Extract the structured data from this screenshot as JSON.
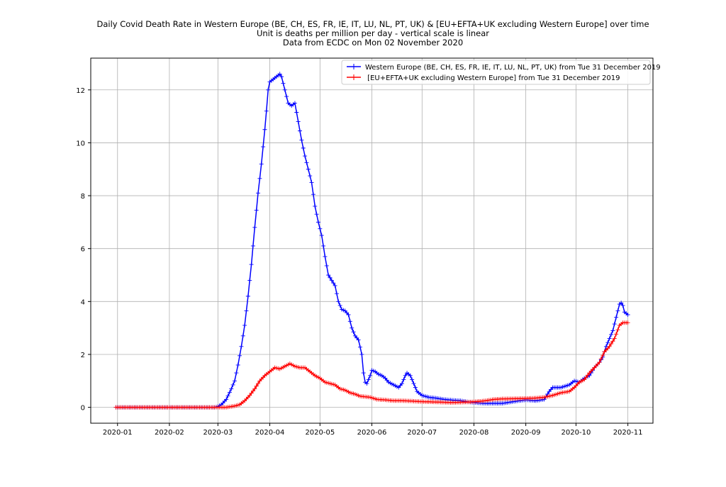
{
  "chart_data": {
    "type": "line",
    "title_lines": [
      "Daily Covid Death Rate in Western Europe (BE, CH, ES, FR, IE, IT, LU, NL, PT, UK) &  [EU+EFTA+UK excluding Western Europe] over time",
      "Unit is deaths per million per day - vertical scale is linear",
      "Data from ECDC on Mon 02 November 2020"
    ],
    "xlabel": "",
    "ylabel": "",
    "x_unit": "days since 2020-01-01",
    "xlim": [
      -16,
      320
    ],
    "ylim": [
      -0.6,
      13.2
    ],
    "grid": true,
    "legend_placement": "top-right",
    "xticks": [
      {
        "day": 0,
        "label": "2020-01"
      },
      {
        "day": 31,
        "label": "2020-02"
      },
      {
        "day": 60,
        "label": "2020-03"
      },
      {
        "day": 91,
        "label": "2020-04"
      },
      {
        "day": 121,
        "label": "2020-05"
      },
      {
        "day": 152,
        "label": "2020-06"
      },
      {
        "day": 182,
        "label": "2020-07"
      },
      {
        "day": 213,
        "label": "2020-08"
      },
      {
        "day": 244,
        "label": "2020-09"
      },
      {
        "day": 274,
        "label": "2020-10"
      },
      {
        "day": 305,
        "label": "2020-11"
      }
    ],
    "yticks": [
      0,
      2,
      4,
      6,
      8,
      10,
      12
    ],
    "series": [
      {
        "name": "Western Europe (BE, CH, ES, FR, IE, IT, LU, NL, PT, UK) from Tue 31 December 2019",
        "color": "#0000ff",
        "points": [
          [
            -1,
            0
          ],
          [
            58,
            0
          ],
          [
            60,
            0.03
          ],
          [
            62,
            0.1
          ],
          [
            65,
            0.3
          ],
          [
            68,
            0.7
          ],
          [
            70,
            1.0
          ],
          [
            72,
            1.6
          ],
          [
            74,
            2.3
          ],
          [
            76,
            3.1
          ],
          [
            78,
            4.2
          ],
          [
            80,
            5.4
          ],
          [
            82,
            6.8
          ],
          [
            84,
            8.1
          ],
          [
            86,
            9.2
          ],
          [
            88,
            10.5
          ],
          [
            89,
            11.2
          ],
          [
            90,
            12.0
          ],
          [
            91,
            12.3
          ],
          [
            93,
            12.4
          ],
          [
            95,
            12.5
          ],
          [
            97,
            12.6
          ],
          [
            98,
            12.5
          ],
          [
            100,
            12.0
          ],
          [
            102,
            11.5
          ],
          [
            104,
            11.4
          ],
          [
            106,
            11.5
          ],
          [
            108,
            10.8
          ],
          [
            110,
            10.1
          ],
          [
            112,
            9.5
          ],
          [
            114,
            9.0
          ],
          [
            116,
            8.5
          ],
          [
            118,
            7.6
          ],
          [
            120,
            7.0
          ],
          [
            122,
            6.5
          ],
          [
            124,
            5.7
          ],
          [
            126,
            5.0
          ],
          [
            128,
            4.8
          ],
          [
            130,
            4.6
          ],
          [
            132,
            4.0
          ],
          [
            134,
            3.7
          ],
          [
            136,
            3.65
          ],
          [
            138,
            3.5
          ],
          [
            140,
            3.0
          ],
          [
            142,
            2.7
          ],
          [
            144,
            2.55
          ],
          [
            146,
            2.0
          ],
          [
            147,
            1.3
          ],
          [
            148,
            0.95
          ],
          [
            149,
            0.9
          ],
          [
            151,
            1.2
          ],
          [
            152,
            1.4
          ],
          [
            154,
            1.35
          ],
          [
            156,
            1.25
          ],
          [
            158,
            1.2
          ],
          [
            160,
            1.1
          ],
          [
            162,
            0.95
          ],
          [
            165,
            0.85
          ],
          [
            168,
            0.75
          ],
          [
            170,
            0.9
          ],
          [
            172,
            1.2
          ],
          [
            173,
            1.3
          ],
          [
            175,
            1.2
          ],
          [
            177,
            0.9
          ],
          [
            179,
            0.6
          ],
          [
            182,
            0.45
          ],
          [
            186,
            0.38
          ],
          [
            190,
            0.35
          ],
          [
            195,
            0.3
          ],
          [
            200,
            0.27
          ],
          [
            205,
            0.25
          ],
          [
            210,
            0.2
          ],
          [
            215,
            0.17
          ],
          [
            220,
            0.15
          ],
          [
            230,
            0.15
          ],
          [
            240,
            0.25
          ],
          [
            244,
            0.28
          ],
          [
            250,
            0.25
          ],
          [
            255,
            0.3
          ],
          [
            258,
            0.6
          ],
          [
            260,
            0.75
          ],
          [
            265,
            0.75
          ],
          [
            270,
            0.85
          ],
          [
            273,
            1.0
          ],
          [
            276,
            0.95
          ],
          [
            279,
            1.1
          ],
          [
            282,
            1.2
          ],
          [
            285,
            1.5
          ],
          [
            288,
            1.7
          ],
          [
            290,
            1.9
          ],
          [
            292,
            2.3
          ],
          [
            294,
            2.6
          ],
          [
            296,
            2.9
          ],
          [
            298,
            3.4
          ],
          [
            300,
            3.9
          ],
          [
            301,
            3.95
          ],
          [
            302,
            3.85
          ],
          [
            303,
            3.6
          ],
          [
            305,
            3.5
          ]
        ]
      },
      {
        "name": " [EU+EFTA+UK excluding Western Europe] from Tue 31 December 2019",
        "color": "#ff0000",
        "points": [
          [
            -1,
            0
          ],
          [
            65,
            0
          ],
          [
            70,
            0.05
          ],
          [
            73,
            0.1
          ],
          [
            76,
            0.25
          ],
          [
            79,
            0.45
          ],
          [
            82,
            0.7
          ],
          [
            85,
            1.0
          ],
          [
            88,
            1.2
          ],
          [
            91,
            1.35
          ],
          [
            94,
            1.5
          ],
          [
            97,
            1.45
          ],
          [
            100,
            1.55
          ],
          [
            103,
            1.65
          ],
          [
            106,
            1.55
          ],
          [
            109,
            1.5
          ],
          [
            112,
            1.5
          ],
          [
            115,
            1.35
          ],
          [
            118,
            1.2
          ],
          [
            121,
            1.1
          ],
          [
            124,
            0.95
          ],
          [
            127,
            0.9
          ],
          [
            130,
            0.85
          ],
          [
            133,
            0.7
          ],
          [
            136,
            0.65
          ],
          [
            139,
            0.55
          ],
          [
            142,
            0.5
          ],
          [
            145,
            0.42
          ],
          [
            148,
            0.4
          ],
          [
            151,
            0.38
          ],
          [
            155,
            0.3
          ],
          [
            160,
            0.28
          ],
          [
            165,
            0.25
          ],
          [
            170,
            0.25
          ],
          [
            175,
            0.24
          ],
          [
            180,
            0.22
          ],
          [
            190,
            0.2
          ],
          [
            200,
            0.18
          ],
          [
            210,
            0.2
          ],
          [
            215,
            0.22
          ],
          [
            220,
            0.25
          ],
          [
            225,
            0.3
          ],
          [
            230,
            0.32
          ],
          [
            240,
            0.33
          ],
          [
            250,
            0.35
          ],
          [
            255,
            0.38
          ],
          [
            260,
            0.45
          ],
          [
            265,
            0.55
          ],
          [
            270,
            0.6
          ],
          [
            273,
            0.75
          ],
          [
            276,
            0.95
          ],
          [
            279,
            1.05
          ],
          [
            282,
            1.3
          ],
          [
            285,
            1.5
          ],
          [
            288,
            1.7
          ],
          [
            291,
            2.1
          ],
          [
            294,
            2.3
          ],
          [
            297,
            2.6
          ],
          [
            300,
            3.1
          ],
          [
            302,
            3.2
          ],
          [
            305,
            3.2
          ]
        ]
      }
    ]
  }
}
